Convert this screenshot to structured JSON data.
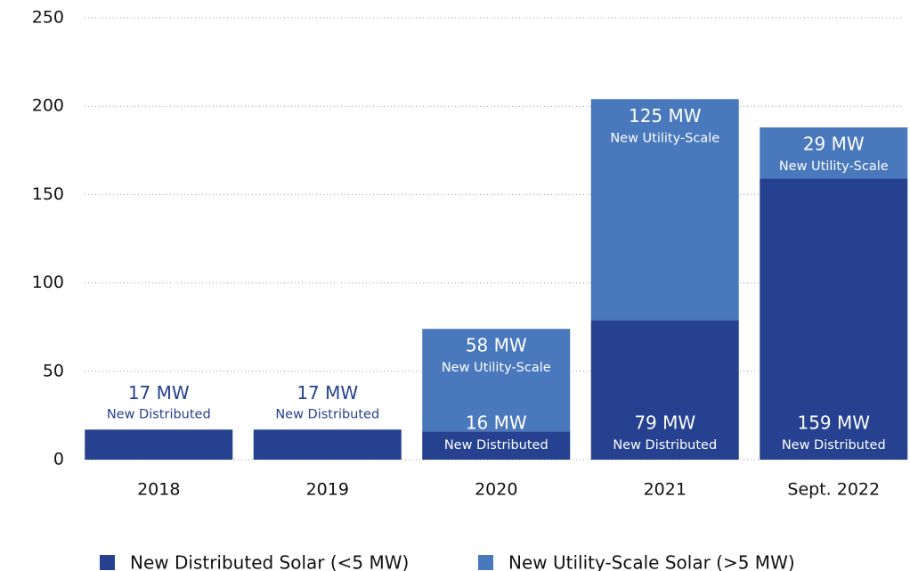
{
  "chart_data": {
    "type": "stacked_bar",
    "categories": [
      "2018",
      "2019",
      "2020",
      "2021",
      "Sept. 2022"
    ],
    "series": [
      {
        "name": "New Distributed Solar (<5 MW)",
        "color": "#25418f",
        "segment_label": "New Distributed",
        "values": [
          17,
          17,
          16,
          79,
          159
        ],
        "value_labels": [
          "17 MW",
          "17 MW",
          "16 MW",
          "79 MW",
          "159 MW"
        ]
      },
      {
        "name": "New Utility-Scale Solar (>5 MW)",
        "color": "#4a78bd",
        "segment_label": "New Utility-Scale",
        "values": [
          null,
          null,
          58,
          125,
          29
        ],
        "value_labels": [
          null,
          null,
          "58 MW",
          "125 MW",
          "29 MW"
        ]
      }
    ],
    "ylim": [
      0,
      250
    ],
    "yticks": [
      0,
      50,
      100,
      150,
      200,
      250
    ],
    "grid": true,
    "legend": "bottom"
  }
}
